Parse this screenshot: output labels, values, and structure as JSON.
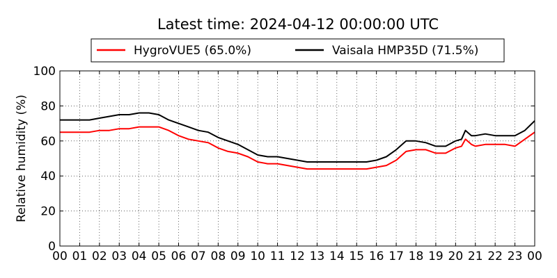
{
  "chart_data": {
    "type": "line",
    "title": "Latest time: 2024-04-12 00:00:00 UTC",
    "ylabel": "Relative humidity (%)",
    "xlabel": "",
    "xlim": [
      0,
      24
    ],
    "ylim": [
      0,
      100
    ],
    "x_ticks": [
      "00",
      "01",
      "02",
      "03",
      "04",
      "05",
      "06",
      "07",
      "08",
      "09",
      "10",
      "11",
      "12",
      "13",
      "14",
      "15",
      "16",
      "17",
      "18",
      "19",
      "20",
      "21",
      "22",
      "23",
      "00"
    ],
    "y_ticks": [
      0,
      20,
      40,
      60,
      80,
      100
    ],
    "grid": true,
    "legend_position": "top",
    "series": [
      {
        "name": "HygroVUE5 (65.0%)",
        "color": "#ff0000",
        "x": [
          0,
          0.5,
          1,
          1.5,
          2,
          2.5,
          3,
          3.5,
          4,
          4.5,
          5,
          5.5,
          6,
          6.5,
          7,
          7.5,
          8,
          8.5,
          9,
          9.5,
          10,
          10.5,
          11,
          11.5,
          12,
          12.5,
          13,
          13.5,
          14,
          14.5,
          15,
          15.5,
          16,
          16.5,
          17,
          17.5,
          18,
          18.5,
          19,
          19.5,
          20,
          20.3,
          20.5,
          20.8,
          21,
          21.5,
          22,
          22.5,
          23,
          23.5,
          24
        ],
        "y": [
          65,
          65,
          65,
          65,
          66,
          66,
          67,
          67,
          68,
          68,
          68,
          66,
          63,
          61,
          60,
          59,
          56,
          54,
          53,
          51,
          48,
          47,
          47,
          46,
          45,
          44,
          44,
          44,
          44,
          44,
          44,
          44,
          45,
          46,
          49,
          54,
          55,
          55,
          53,
          53,
          56,
          57,
          61,
          58,
          57,
          58,
          58,
          58,
          57,
          61,
          65
        ]
      },
      {
        "name": "Vaisala HMP35D (71.5%)",
        "color": "#000000",
        "x": [
          0,
          0.5,
          1,
          1.5,
          2,
          2.5,
          3,
          3.5,
          4,
          4.5,
          5,
          5.5,
          6,
          6.5,
          7,
          7.5,
          8,
          8.5,
          9,
          9.5,
          10,
          10.5,
          11,
          11.5,
          12,
          12.5,
          13,
          13.5,
          14,
          14.5,
          15,
          15.5,
          16,
          16.5,
          17,
          17.5,
          18,
          18.5,
          19,
          19.5,
          20,
          20.3,
          20.5,
          20.8,
          21,
          21.5,
          22,
          22.5,
          23,
          23.5,
          24
        ],
        "y": [
          72,
          72,
          72,
          72,
          73,
          74,
          75,
          75,
          76,
          76,
          75,
          72,
          70,
          68,
          66,
          65,
          62,
          60,
          58,
          55,
          52,
          51,
          51,
          50,
          49,
          48,
          48,
          48,
          48,
          48,
          48,
          48,
          49,
          51,
          55,
          60,
          60,
          59,
          57,
          57,
          60,
          61,
          66,
          63,
          63,
          64,
          63,
          63,
          63,
          66,
          71.5
        ]
      }
    ]
  }
}
